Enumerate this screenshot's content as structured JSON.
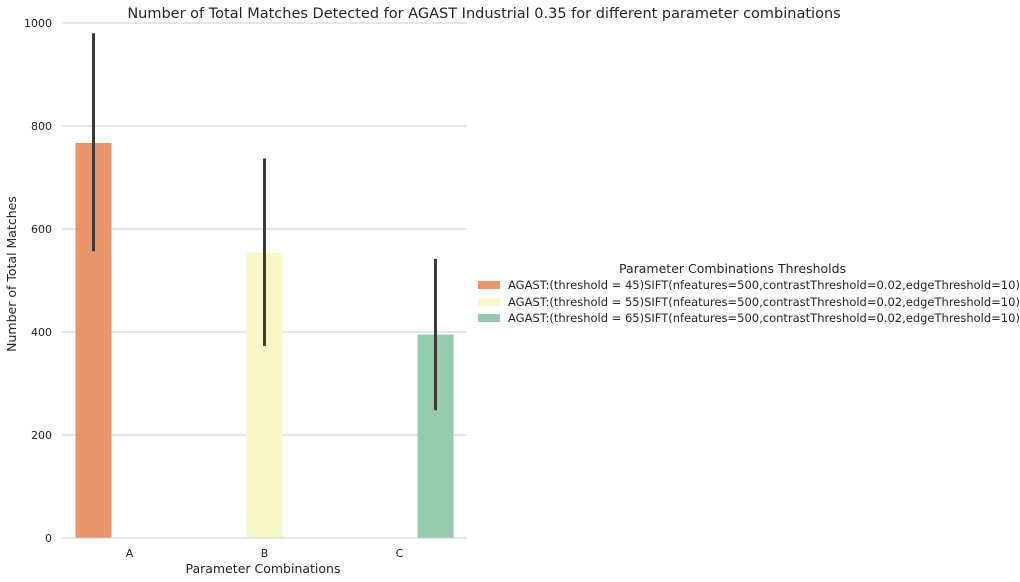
{
  "chart_data": {
    "type": "bar",
    "title": "Number of Total Matches Detected for AGAST Industrial 0.35 for different parameter combinations",
    "xlabel": "Parameter Combinations",
    "ylabel": "Number of Total Matches",
    "categories": [
      "A",
      "B",
      "C"
    ],
    "ylim": [
      0,
      1000
    ],
    "yticks": [
      0,
      200,
      400,
      600,
      800,
      1000
    ],
    "grid": true,
    "legend_position": "right",
    "legend_title": "Parameter Combinations Thresholds",
    "series": [
      {
        "name": "AGAST:(threshold = 45)SIFT(nfeatures=500,contrastThreshold=0.02,edgeThreshold=10)",
        "color": "#E8956A",
        "values": [
          767,
          null,
          null
        ],
        "error_low": [
          557,
          null,
          null
        ],
        "error_high": [
          980,
          null,
          null
        ]
      },
      {
        "name": "AGAST:(threshold = 55)SIFT(nfeatures=500,contrastThreshold=0.02,edgeThreshold=10)",
        "color": "#F8F7C8",
        "values": [
          null,
          554,
          null
        ],
        "error_low": [
          null,
          373,
          null
        ],
        "error_high": [
          null,
          737,
          null
        ]
      },
      {
        "name": "AGAST:(threshold = 65)SIFT(nfeatures=500,contrastThreshold=0.02,edgeThreshold=10)",
        "color": "#96CCAE",
        "values": [
          null,
          null,
          395
        ],
        "error_low": [
          null,
          null,
          248
        ],
        "error_high": [
          null,
          null,
          542
        ]
      }
    ]
  }
}
